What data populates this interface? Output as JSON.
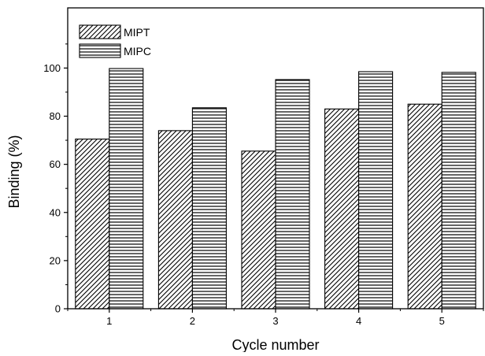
{
  "chart_data": {
    "type": "bar",
    "title": "",
    "xlabel": "Cycle number",
    "ylabel": "Binding (%)",
    "categories": [
      "1",
      "2",
      "3",
      "4",
      "5"
    ],
    "series": [
      {
        "name": "MIPT",
        "values": [
          70.5,
          74.0,
          65.5,
          83.0,
          85.0
        ],
        "pattern": "diagonal-hatch"
      },
      {
        "name": "MIPC",
        "values": [
          99.8,
          83.5,
          95.2,
          98.5,
          98.2
        ],
        "pattern": "horizontal-lines"
      }
    ],
    "ylim": [
      0,
      125
    ],
    "yticks": [
      "0",
      "20",
      "40",
      "60",
      "80",
      "100"
    ],
    "grid": false,
    "legend_position": "top-left",
    "colors": {
      "bar_stroke": "#000000",
      "hatch": "#000000",
      "background": "#ffffff"
    }
  }
}
